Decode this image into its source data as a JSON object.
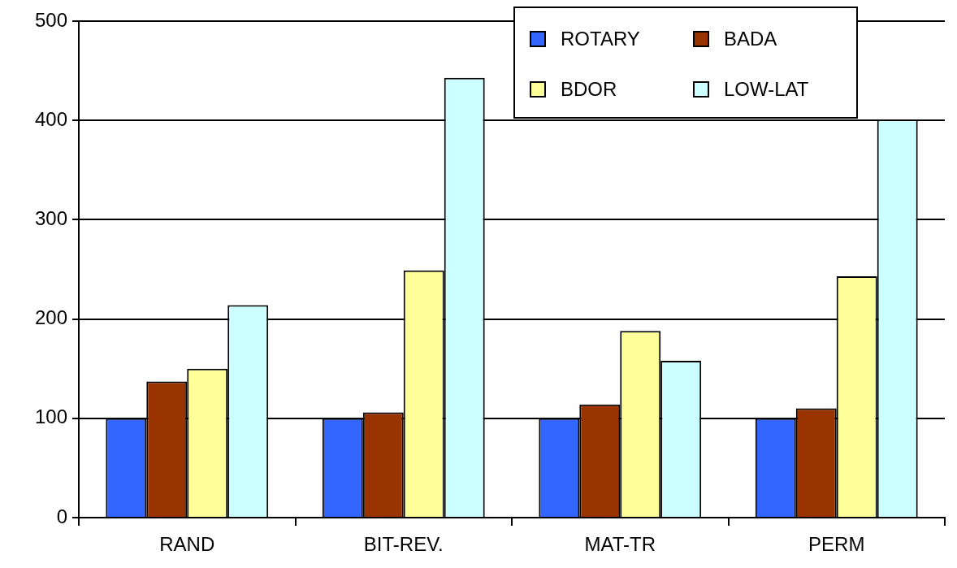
{
  "chart_data": {
    "type": "bar",
    "categories": [
      "RAND",
      "BIT-REV.",
      "MAT-TR",
      "PERM"
    ],
    "series": [
      {
        "name": "ROTARY",
        "color": "#3366ff",
        "values": [
          100,
          100,
          100,
          100
        ]
      },
      {
        "name": "BADA",
        "color": "#993300",
        "values": [
          137,
          106,
          114,
          110
        ]
      },
      {
        "name": "BDOR",
        "color": "#ffff99",
        "values": [
          150,
          249,
          188,
          243
        ]
      },
      {
        "name": "LOW-LAT",
        "color": "#ccffff",
        "values": [
          214,
          443,
          158,
          401
        ]
      }
    ],
    "ylim": [
      0,
      500
    ],
    "yticks": [
      0,
      100,
      200,
      300,
      400,
      500
    ],
    "grid": "y",
    "legend": "top right"
  }
}
